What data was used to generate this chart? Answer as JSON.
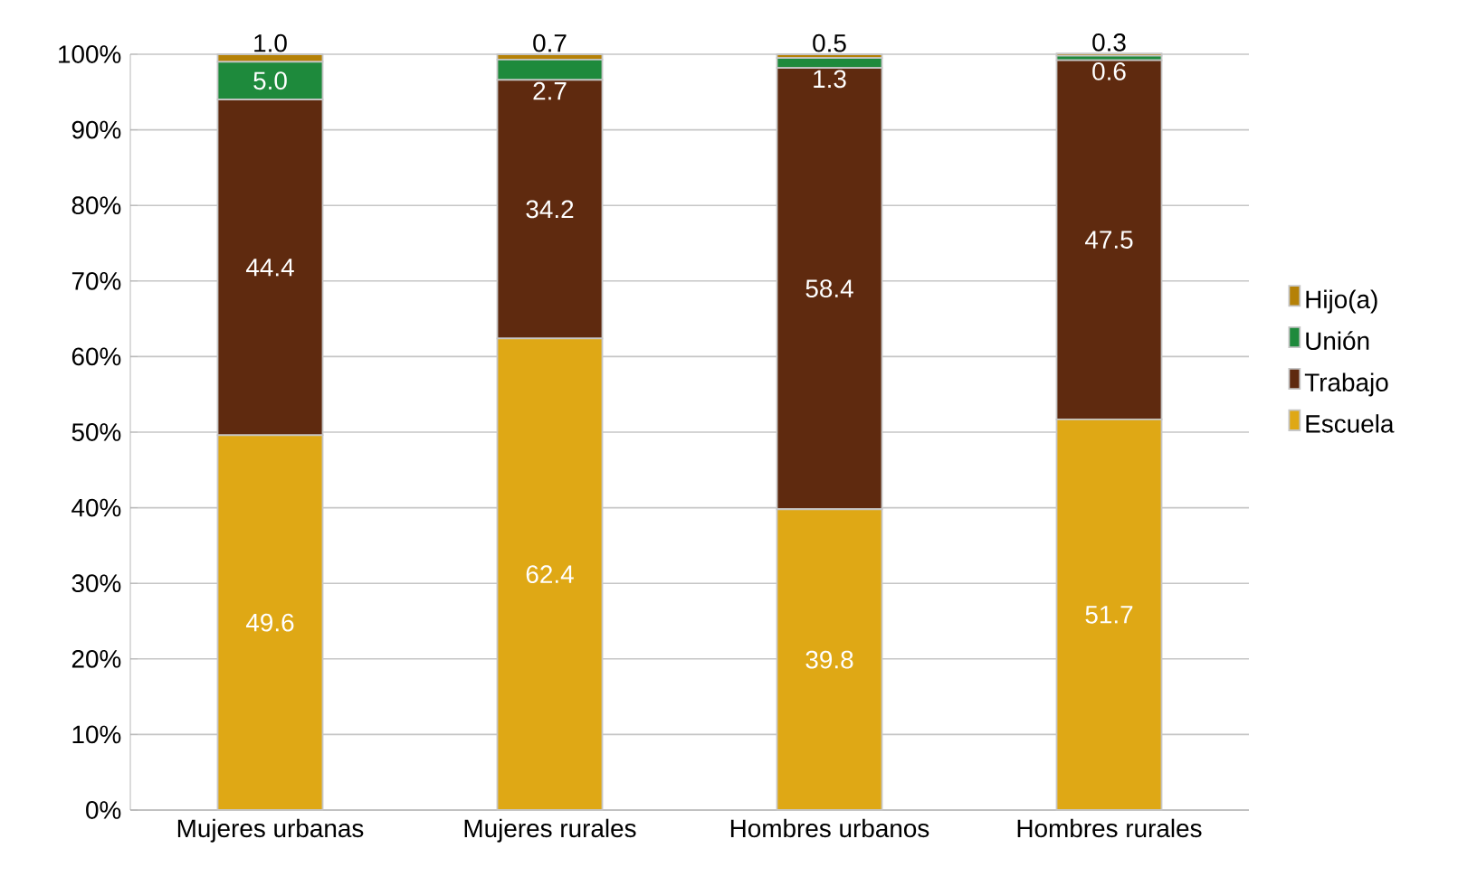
{
  "chart_data": {
    "type": "bar",
    "stacked": true,
    "categories": [
      "Mujeres urbanas",
      "Mujeres rurales",
      "Hombres urbanos",
      "Hombres rurales"
    ],
    "series": [
      {
        "name": "Escuela",
        "color": "#dfa815",
        "values": [
          49.6,
          62.4,
          39.8,
          51.7
        ],
        "value_labels": [
          "49.6",
          "62.4",
          "39.8",
          "51.7"
        ]
      },
      {
        "name": "Trabajo",
        "color": "#5f2a0f",
        "values": [
          44.4,
          34.2,
          58.4,
          47.5
        ],
        "value_labels": [
          "44.4",
          "34.2",
          "58.4",
          "47.5"
        ]
      },
      {
        "name": "Unión",
        "color": "#1e8a3c",
        "values": [
          5.0,
          2.7,
          1.3,
          0.6
        ],
        "value_labels": [
          "5.0",
          "2.7",
          "1.3",
          "0.6"
        ]
      },
      {
        "name": "Hijo(a)",
        "color": "#b58107",
        "values": [
          1.0,
          0.7,
          0.5,
          0.3
        ],
        "value_labels": [
          "1.0",
          "0.7",
          "0.5",
          "0.3"
        ]
      }
    ],
    "ylim": [
      0,
      100
    ],
    "yticks": [
      {
        "value": 0,
        "label": "0%"
      },
      {
        "value": 10,
        "label": "10%"
      },
      {
        "value": 20,
        "label": "20%"
      },
      {
        "value": 30,
        "label": "30%"
      },
      {
        "value": 40,
        "label": "40%"
      },
      {
        "value": 50,
        "label": "50%"
      },
      {
        "value": 60,
        "label": "60%"
      },
      {
        "value": 70,
        "label": "70%"
      },
      {
        "value": 80,
        "label": "80%"
      },
      {
        "value": 90,
        "label": "90%"
      },
      {
        "value": 100,
        "label": "100%"
      }
    ],
    "grid": "y",
    "legend": "right"
  }
}
